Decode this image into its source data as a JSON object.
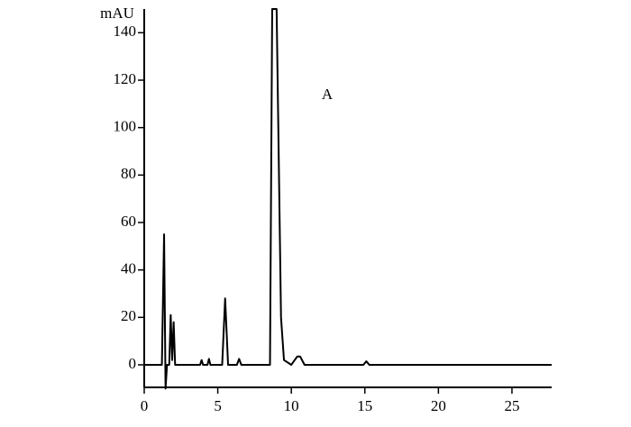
{
  "chart_data": {
    "type": "line",
    "y_label": "mAU",
    "annotation": "A",
    "x": [
      0,
      1.2,
      1.35,
      1.45,
      1.55,
      1.7,
      1.8,
      1.9,
      2.0,
      2.1,
      3.8,
      3.9,
      4.0,
      4.3,
      4.4,
      4.5,
      5.3,
      5.5,
      5.7,
      6.3,
      6.45,
      6.6,
      8.55,
      8.7,
      9.0,
      9.3,
      9.5,
      10.0,
      10.4,
      10.6,
      10.9,
      14.9,
      15.1,
      15.3,
      27.7
    ],
    "series": [
      {
        "color": "#000000",
        "values": [
          0,
          0,
          55,
          -10,
          0,
          0,
          21,
          2,
          18,
          0,
          0,
          2,
          0,
          0,
          2.5,
          0,
          0,
          28,
          0,
          0,
          2.5,
          0,
          0,
          150,
          150,
          20,
          2,
          0,
          3.5,
          3.5,
          0,
          0,
          1.5,
          0,
          0
        ]
      }
    ],
    "xlim": [
      0,
      27.7
    ],
    "ylim": [
      -9.5,
      150
    ],
    "xticks": [
      0,
      5,
      10,
      15,
      20,
      25
    ],
    "yticks": [
      0,
      20,
      40,
      60,
      80,
      100,
      120,
      140
    ]
  }
}
